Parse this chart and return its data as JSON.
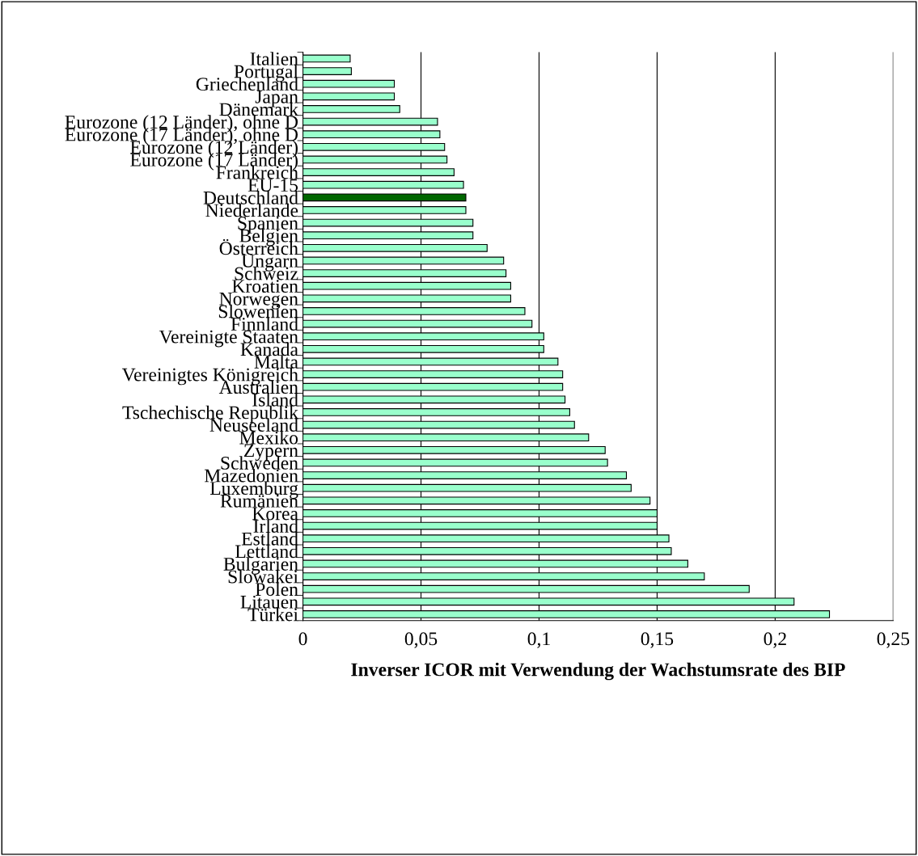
{
  "chart_data": {
    "type": "bar",
    "orientation": "horizontal",
    "xlabel": "Inverser ICOR mit Verwendung der Wachstumsrate des BIP",
    "categories": [
      "Italien",
      "Portugal",
      "Griechenland",
      "Japan",
      "Dänemark",
      "Eurozone (12 Länder), ohne D",
      "Eurozone (17 Länder), ohne D",
      "Eurozone (12 Länder)",
      "Eurozone (17 Länder)",
      "Frankreich",
      "EU-15",
      "Deutschland",
      "Niederlande",
      "Spanien",
      "Belgien",
      "Österreich",
      "Ungarn",
      "Schweiz",
      "Kroatien",
      "Norwegen",
      "Slowenien",
      "Finnland",
      "Vereinigte Staaten",
      "Kanada",
      "Malta",
      "Vereinigtes Königreich",
      "Australien",
      "Island",
      "Tschechische Republik",
      "Neuseeland",
      "Mexiko",
      "Zypern",
      "Schweden",
      "Mazedonien",
      "Luxemburg",
      "Rumänien",
      "Korea",
      "Irland",
      "Estland",
      "Lettland",
      "Bulgarien",
      "Slowakei",
      "Polen",
      "Litauen",
      "Türkei"
    ],
    "values": [
      0.02,
      0.0205,
      0.0387,
      0.0387,
      0.041,
      0.057,
      0.058,
      0.06,
      0.061,
      0.064,
      0.068,
      0.069,
      0.069,
      0.072,
      0.072,
      0.078,
      0.085,
      0.086,
      0.088,
      0.088,
      0.094,
      0.097,
      0.102,
      0.102,
      0.108,
      0.11,
      0.11,
      0.111,
      0.113,
      0.115,
      0.121,
      0.128,
      0.129,
      0.137,
      0.139,
      0.147,
      0.15,
      0.15,
      0.155,
      0.156,
      0.163,
      0.17,
      0.189,
      0.208,
      0.223
    ],
    "colors": [
      "#99ffcc",
      "#99ffcc",
      "#99ffcc",
      "#99ffcc",
      "#99ffcc",
      "#99ffcc",
      "#99ffcc",
      "#99ffcc",
      "#99ffcc",
      "#99ffcc",
      "#99ffcc",
      "#006600",
      "#99ffcc",
      "#99ffcc",
      "#99ffcc",
      "#99ffcc",
      "#99ffcc",
      "#99ffcc",
      "#99ffcc",
      "#99ffcc",
      "#99ffcc",
      "#99ffcc",
      "#99ffcc",
      "#99ffcc",
      "#99ffcc",
      "#99ffcc",
      "#99ffcc",
      "#99ffcc",
      "#99ffcc",
      "#99ffcc",
      "#99ffcc",
      "#99ffcc",
      "#99ffcc",
      "#99ffcc",
      "#99ffcc",
      "#99ffcc",
      "#99ffcc",
      "#99ffcc",
      "#99ffcc",
      "#99ffcc",
      "#99ffcc",
      "#99ffcc",
      "#99ffcc",
      "#99ffcc",
      "#99ffcc"
    ],
    "xlim": [
      0,
      0.25
    ],
    "xticks": [
      0,
      {
        "value": 0.05,
        "label": "0,05"
      },
      {
        "value": 0.1,
        "label": "0,1"
      },
      {
        "value": 0.15,
        "label": "0,15"
      },
      {
        "value": 0.2,
        "label": "0,2"
      },
      {
        "value": 0.25,
        "label": "0,25"
      }
    ],
    "grid": "x"
  }
}
